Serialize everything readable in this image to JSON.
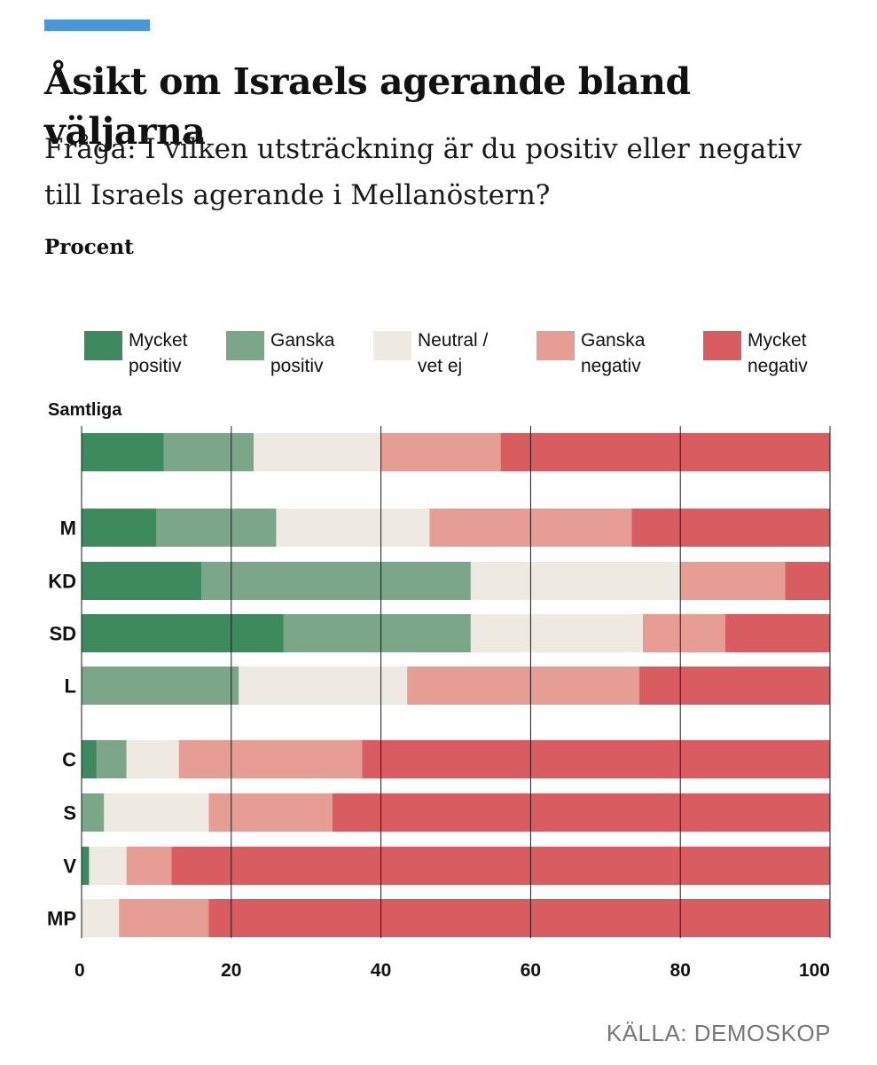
{
  "header": {
    "title": "Åsikt om Israels agerande bland väljarna",
    "subtitle": "Fråga: I vilken utsträckning är du positiv eller negativ till Israels agerande i Mellanöstern?",
    "unit_label": "Procent"
  },
  "source": "KÄLLA: DEMOSKOP",
  "chart_data": {
    "type": "bar",
    "orientation": "horizontal",
    "stacked": true,
    "title": "Åsikt om Israels agerande bland väljarna",
    "xlabel": "",
    "ylabel": "",
    "xlim": [
      0,
      100
    ],
    "x_ticks": [
      0,
      20,
      40,
      60,
      80,
      100
    ],
    "grid": true,
    "legend_position": "top",
    "categories": [
      "Samtliga",
      "M",
      "KD",
      "SD",
      "L",
      "C",
      "S",
      "V",
      "MP"
    ],
    "series": [
      {
        "name": "Mycket\npositiv",
        "color": "#3d8a5e",
        "values": [
          11,
          10,
          16,
          27,
          0,
          2,
          0,
          1,
          0
        ]
      },
      {
        "name": "Ganska\npositiv",
        "color": "#7ba687",
        "values": [
          12,
          16,
          36,
          25,
          21,
          4,
          3,
          0,
          0
        ]
      },
      {
        "name": "Neutral /\nvet ej",
        "color": "#eeeae2",
        "values": [
          17,
          20.5,
          28,
          23,
          22.5,
          7,
          14,
          5,
          5
        ]
      },
      {
        "name": "Ganska\nnegativ",
        "color": "#e69d93",
        "values": [
          16,
          27,
          14,
          11,
          31,
          24.5,
          16.5,
          6,
          12
        ]
      },
      {
        "name": "Mycket\nnegativ",
        "color": "#d95c60",
        "values": [
          44,
          26.5,
          6,
          14,
          25.5,
          62.5,
          66.5,
          88,
          83
        ]
      }
    ]
  }
}
